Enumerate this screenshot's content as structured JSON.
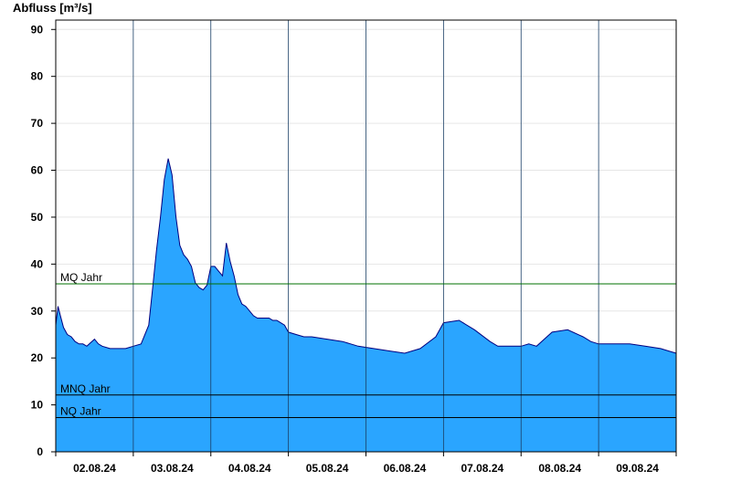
{
  "chart_data": {
    "type": "area",
    "ylabel": "Abfluss [m³/s]",
    "xlabel": "",
    "title": "",
    "ylim": [
      0,
      92
    ],
    "yticks": [
      0,
      10,
      20,
      30,
      40,
      50,
      60,
      70,
      80,
      90
    ],
    "xlim_days": [
      0,
      8
    ],
    "day_ticks": [
      "02.08.24",
      "03.08.24",
      "04.08.24",
      "05.08.24",
      "06.08.24",
      "07.08.24",
      "08.08.24",
      "09.08.24"
    ],
    "fill_color": "#2aa5ff",
    "line_color": "#000080",
    "grid": true,
    "reference_lines": [
      {
        "name": "MQ Jahr",
        "value": 35.8,
        "color": "#007000"
      },
      {
        "name": "MNQ Jahr",
        "value": 12.1,
        "color": "#000000"
      },
      {
        "name": "NQ Jahr",
        "value": 7.3,
        "color": "#000000"
      }
    ],
    "series": [
      {
        "x": [
          0,
          0.03,
          0.06,
          0.1,
          0.15,
          0.2,
          0.25,
          0.3,
          0.35,
          0.4,
          0.5,
          0.55,
          0.6,
          0.7,
          0.8,
          0.9,
          1.0,
          1.1,
          1.2,
          1.25,
          1.3,
          1.35,
          1.4,
          1.45,
          1.5,
          1.55,
          1.6,
          1.65,
          1.7,
          1.75,
          1.8,
          1.85,
          1.9,
          1.95,
          2.0,
          2.05,
          2.1,
          2.15,
          2.2,
          2.25,
          2.3,
          2.35,
          2.4,
          2.45,
          2.5,
          2.55,
          2.6,
          2.65,
          2.7,
          2.75,
          2.8,
          2.85,
          2.9,
          2.95,
          3.0,
          3.1,
          3.2,
          3.3,
          3.5,
          3.7,
          3.9,
          4.1,
          4.3,
          4.5,
          4.7,
          4.9,
          5.0,
          5.2,
          5.4,
          5.6,
          5.7,
          5.8,
          5.9,
          6.0,
          6.1,
          6.2,
          6.4,
          6.6,
          6.8,
          6.9,
          7.0,
          7.1,
          7.2,
          7.4,
          7.6,
          7.8,
          7.9,
          8.0
        ],
        "y": [
          27,
          31,
          29,
          26.5,
          25,
          24.5,
          23.5,
          23,
          23,
          22.5,
          24,
          23,
          22.5,
          22,
          22,
          22,
          22.5,
          23,
          27,
          35,
          43,
          50,
          58,
          62.5,
          59,
          50,
          44,
          42,
          41,
          39.5,
          36,
          35,
          34.5,
          35.5,
          39.5,
          39.5,
          38.5,
          37.5,
          44.5,
          40.5,
          37.5,
          33.5,
          31.5,
          31,
          30,
          29,
          28.5,
          28.5,
          28.5,
          28.5,
          28,
          28,
          27.5,
          27,
          25.5,
          25,
          24.5,
          24.5,
          24,
          23.5,
          22.5,
          22,
          21.5,
          21,
          22,
          24.5,
          27.5,
          28,
          26,
          23.5,
          22.5,
          22.5,
          22.5,
          22.5,
          23,
          22.5,
          25.5,
          26,
          24.5,
          23.5,
          23,
          23,
          23,
          23,
          22.5,
          22,
          21.5,
          21
        ]
      }
    ]
  }
}
